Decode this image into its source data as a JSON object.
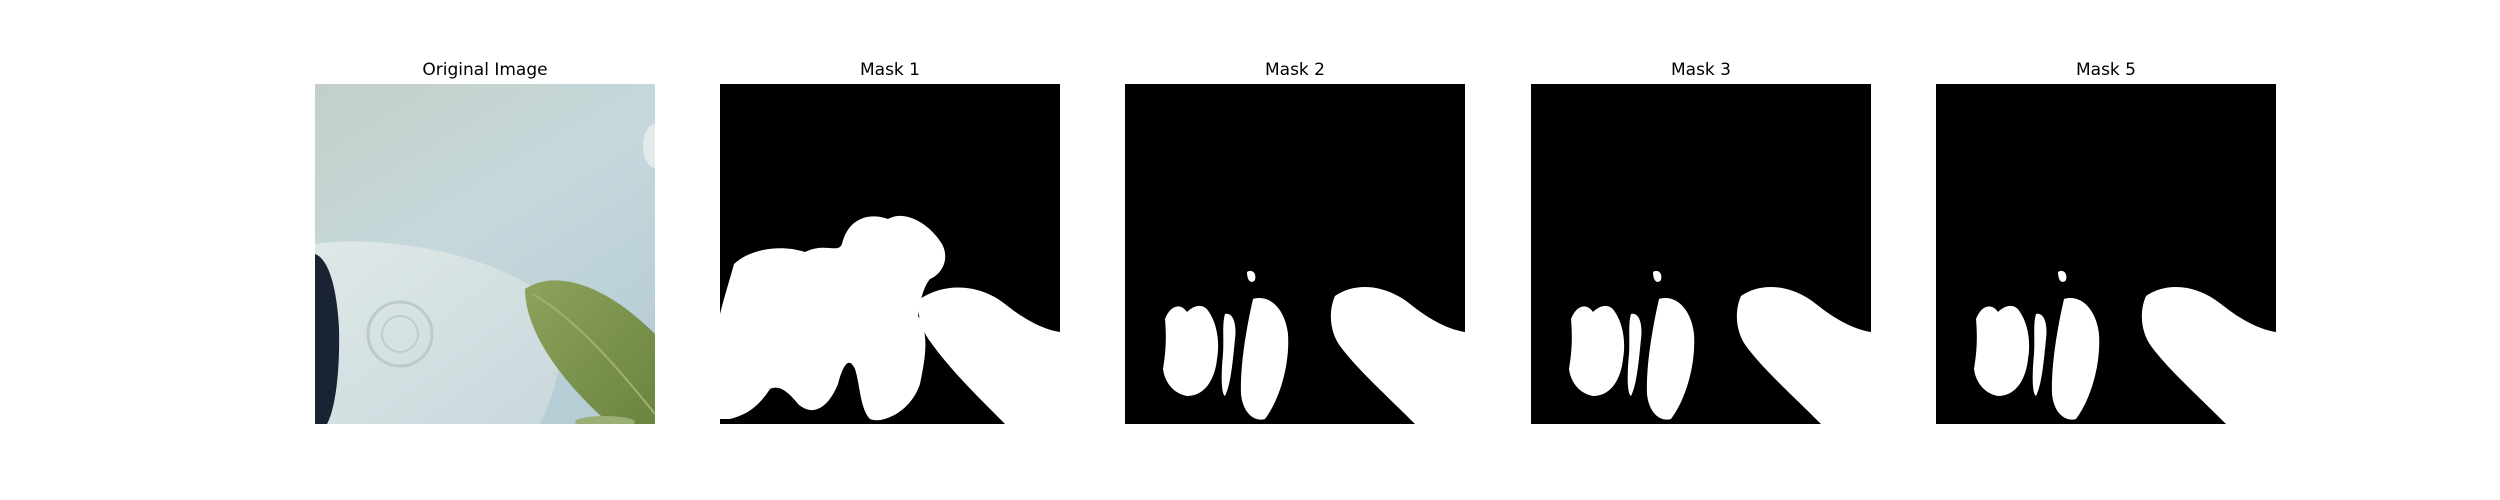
{
  "figure": {
    "panels": [
      {
        "title": "Original Image",
        "kind": "photo"
      },
      {
        "title": "Mask 1",
        "kind": "mask"
      },
      {
        "title": "Mask 2",
        "kind": "mask"
      },
      {
        "title": "Mask 3",
        "kind": "mask"
      },
      {
        "title": "Mask 5",
        "kind": "mask"
      }
    ]
  },
  "colors": {
    "mask_background": "#000000",
    "mask_foreground": "#ffffff",
    "photo_wall": "#c4d6d9",
    "photo_vase": "#d6e2e3",
    "photo_leaf": "#77904a",
    "photo_shadow": "#1a2333"
  }
}
